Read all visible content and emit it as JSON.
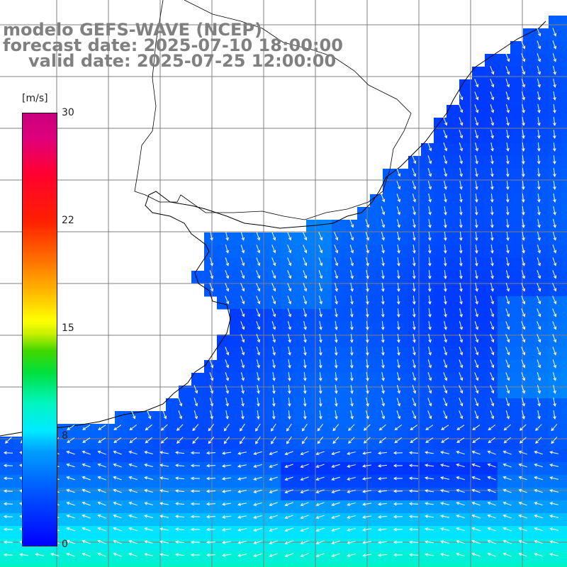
{
  "title": {
    "line1": "modelo GEFS-WAVE (NCEP)",
    "line2": "forecast date: 2025-07-10 18:00:00",
    "line3": "valid date: 2025-07-25 12:00:00"
  },
  "colorbar": {
    "unit": "[m/s]",
    "ticks": [
      "30",
      "22",
      "15",
      "8",
      "0"
    ],
    "tick_values": [
      30,
      22,
      15,
      8,
      0
    ],
    "vmin": 0,
    "vmax": 30,
    "colors": [
      "#0000ff",
      "#00a0ff",
      "#00eaff",
      "#00e040",
      "#ffff00",
      "#ff7000",
      "#ff0030",
      "#c8007e"
    ]
  },
  "map": {
    "variable": "wind speed and direction",
    "land_color": "#ffffff",
    "grid_color": "#808080",
    "coast_color": "#000000",
    "arrow_color": "#ffffff",
    "wind_regions": [
      {
        "region": "northern coastal waters",
        "speed_ms": 3,
        "direction": "toward south-southeast"
      },
      {
        "region": "central basin",
        "speed_ms": 4,
        "direction": "toward south"
      },
      {
        "region": "southern open sea",
        "speed_ms": 8,
        "direction": "toward west"
      }
    ]
  }
}
